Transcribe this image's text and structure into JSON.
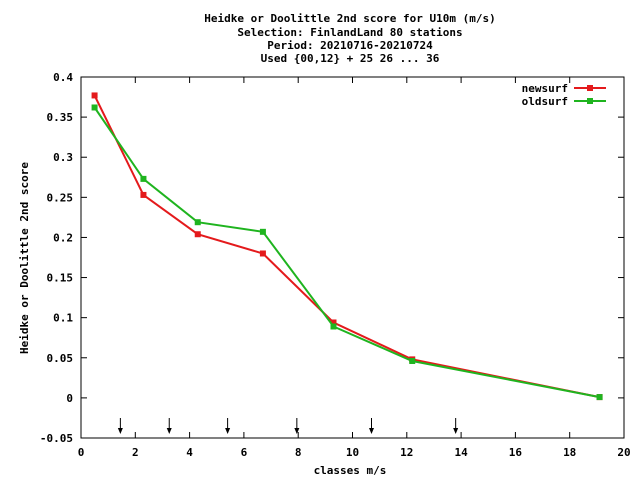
{
  "chart_data": {
    "type": "line",
    "title_lines": [
      "Heidke or Doolittle 2nd score  for U10m (m/s)",
      "Selection: FinlandLand     80 stations",
      "Period: 20210716-20210724",
      "Used {00,12} + 25 26 ... 36"
    ],
    "xlabel": "classes m/s",
    "ylabel": "Heidke or Doolittle 2nd score",
    "xlim": [
      0,
      20
    ],
    "ylim": [
      -0.05,
      0.4
    ],
    "xticks": [
      0,
      2,
      4,
      6,
      8,
      10,
      12,
      14,
      16,
      18,
      20
    ],
    "yticks": [
      -0.05,
      0,
      0.05,
      0.1,
      0.15,
      0.2,
      0.25,
      0.3,
      0.35,
      0.4
    ],
    "xtick_labels": [
      "0",
      "2",
      "4",
      "6",
      "8",
      "10",
      "12",
      "14",
      "16",
      "18",
      "20"
    ],
    "ytick_labels": [
      "-0.05",
      "0",
      "0.05",
      "0.1",
      "0.15",
      "0.2",
      "0.25",
      "0.3",
      "0.35",
      "0.4"
    ],
    "legend_position": "top-right",
    "grid": false,
    "class_markers_x": [
      1.45,
      3.25,
      5.4,
      7.95,
      10.7,
      13.8
    ],
    "series": [
      {
        "name": "newsurf",
        "color": "#e41a1c",
        "x": [
          0.5,
          2.3,
          4.3,
          6.7,
          9.3,
          12.2,
          19.1
        ],
        "y": [
          0.377,
          0.253,
          0.204,
          0.18,
          0.094,
          0.048,
          0.001
        ]
      },
      {
        "name": "oldsurf",
        "color": "#1fb41f",
        "x": [
          0.5,
          2.3,
          4.3,
          6.7,
          9.3,
          12.2,
          19.1
        ],
        "y": [
          0.362,
          0.273,
          0.219,
          0.207,
          0.089,
          0.046,
          0.001
        ]
      }
    ]
  }
}
